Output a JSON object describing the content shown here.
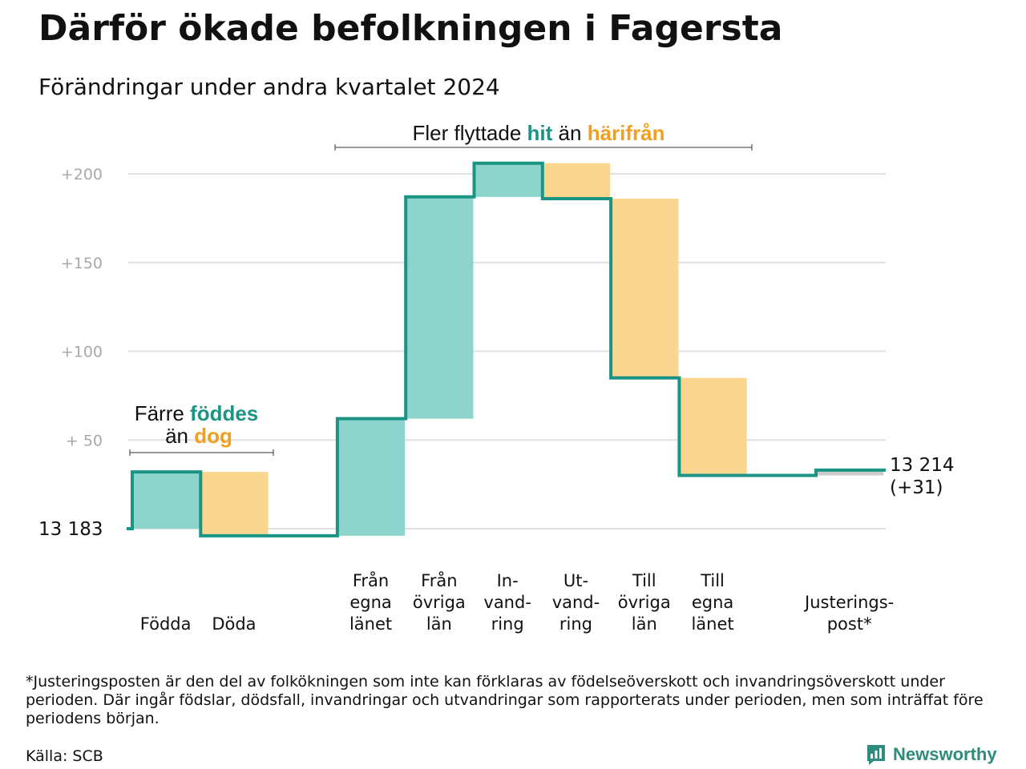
{
  "title": "Därför ökade befolkningen i Fagersta",
  "subtitle": "Förändringar under andra kvartalet 2024",
  "footnote": "*Justeringsposten är den del av folkökningen som inte kan förklaras av födelseöverskott och invandringsöverskott under perioden. Där ingår födslar, dödsfall, invandringar och utvandringar som rapporterats under perioden, men som inträffat före periodens början.",
  "source": "Källa: SCB",
  "brand": "Newsworthy",
  "colors": {
    "inflow": "#8dd5cc",
    "outflow": "#fbd68f",
    "line": "#1a9485",
    "adjustment": "#cccccc",
    "grid": "#e0e0e0"
  },
  "annotations": {
    "births": {
      "line1_prefix": "Färre ",
      "line1_highlight": "föddes",
      "line2_prefix": "än ",
      "line2_highlight": "dog"
    },
    "migration": {
      "prefix": "Fler flyttade ",
      "highlight_in": "hit",
      "middle": " än ",
      "highlight_out": "härifrån"
    }
  },
  "chart_data": {
    "type": "waterfall",
    "start_label": "13  183",
    "start_value": 13183,
    "end_label_line1": "13 214",
    "end_label_line2": "(+31)",
    "end_value": 13214,
    "y_ticks": [
      {
        "value": 50,
        "label": "+  50"
      },
      {
        "value": 100,
        "label": "+100"
      },
      {
        "value": 150,
        "label": "+150"
      },
      {
        "value": 200,
        "label": "+200"
      }
    ],
    "ylim": [
      -10,
      215
    ],
    "steps": [
      {
        "label": [
          "Födda"
        ],
        "change": 32,
        "kind": "inflow"
      },
      {
        "label": [
          "Döda"
        ],
        "change": -36,
        "kind": "outflow"
      },
      {
        "label": [
          ""
        ],
        "change": 0,
        "kind": "gap"
      },
      {
        "label": [
          "Från",
          "egna",
          "länet"
        ],
        "change": 66,
        "kind": "inflow"
      },
      {
        "label": [
          "Från",
          "övriga",
          "län"
        ],
        "change": 125,
        "kind": "inflow"
      },
      {
        "label": [
          "In-",
          "vand-",
          "ring"
        ],
        "change": 19,
        "kind": "inflow"
      },
      {
        "label": [
          "Ut-",
          "vand-",
          "ring"
        ],
        "change": -20,
        "kind": "outflow"
      },
      {
        "label": [
          "Till",
          "övriga",
          "län"
        ],
        "change": -101,
        "kind": "outflow"
      },
      {
        "label": [
          "Till",
          "egna",
          "länet"
        ],
        "change": -55,
        "kind": "outflow"
      },
      {
        "label": [
          ""
        ],
        "change": 0,
        "kind": "gap"
      },
      {
        "label": [
          "Justerings-",
          "post*"
        ],
        "change": 3,
        "kind": "adjustment"
      }
    ]
  }
}
